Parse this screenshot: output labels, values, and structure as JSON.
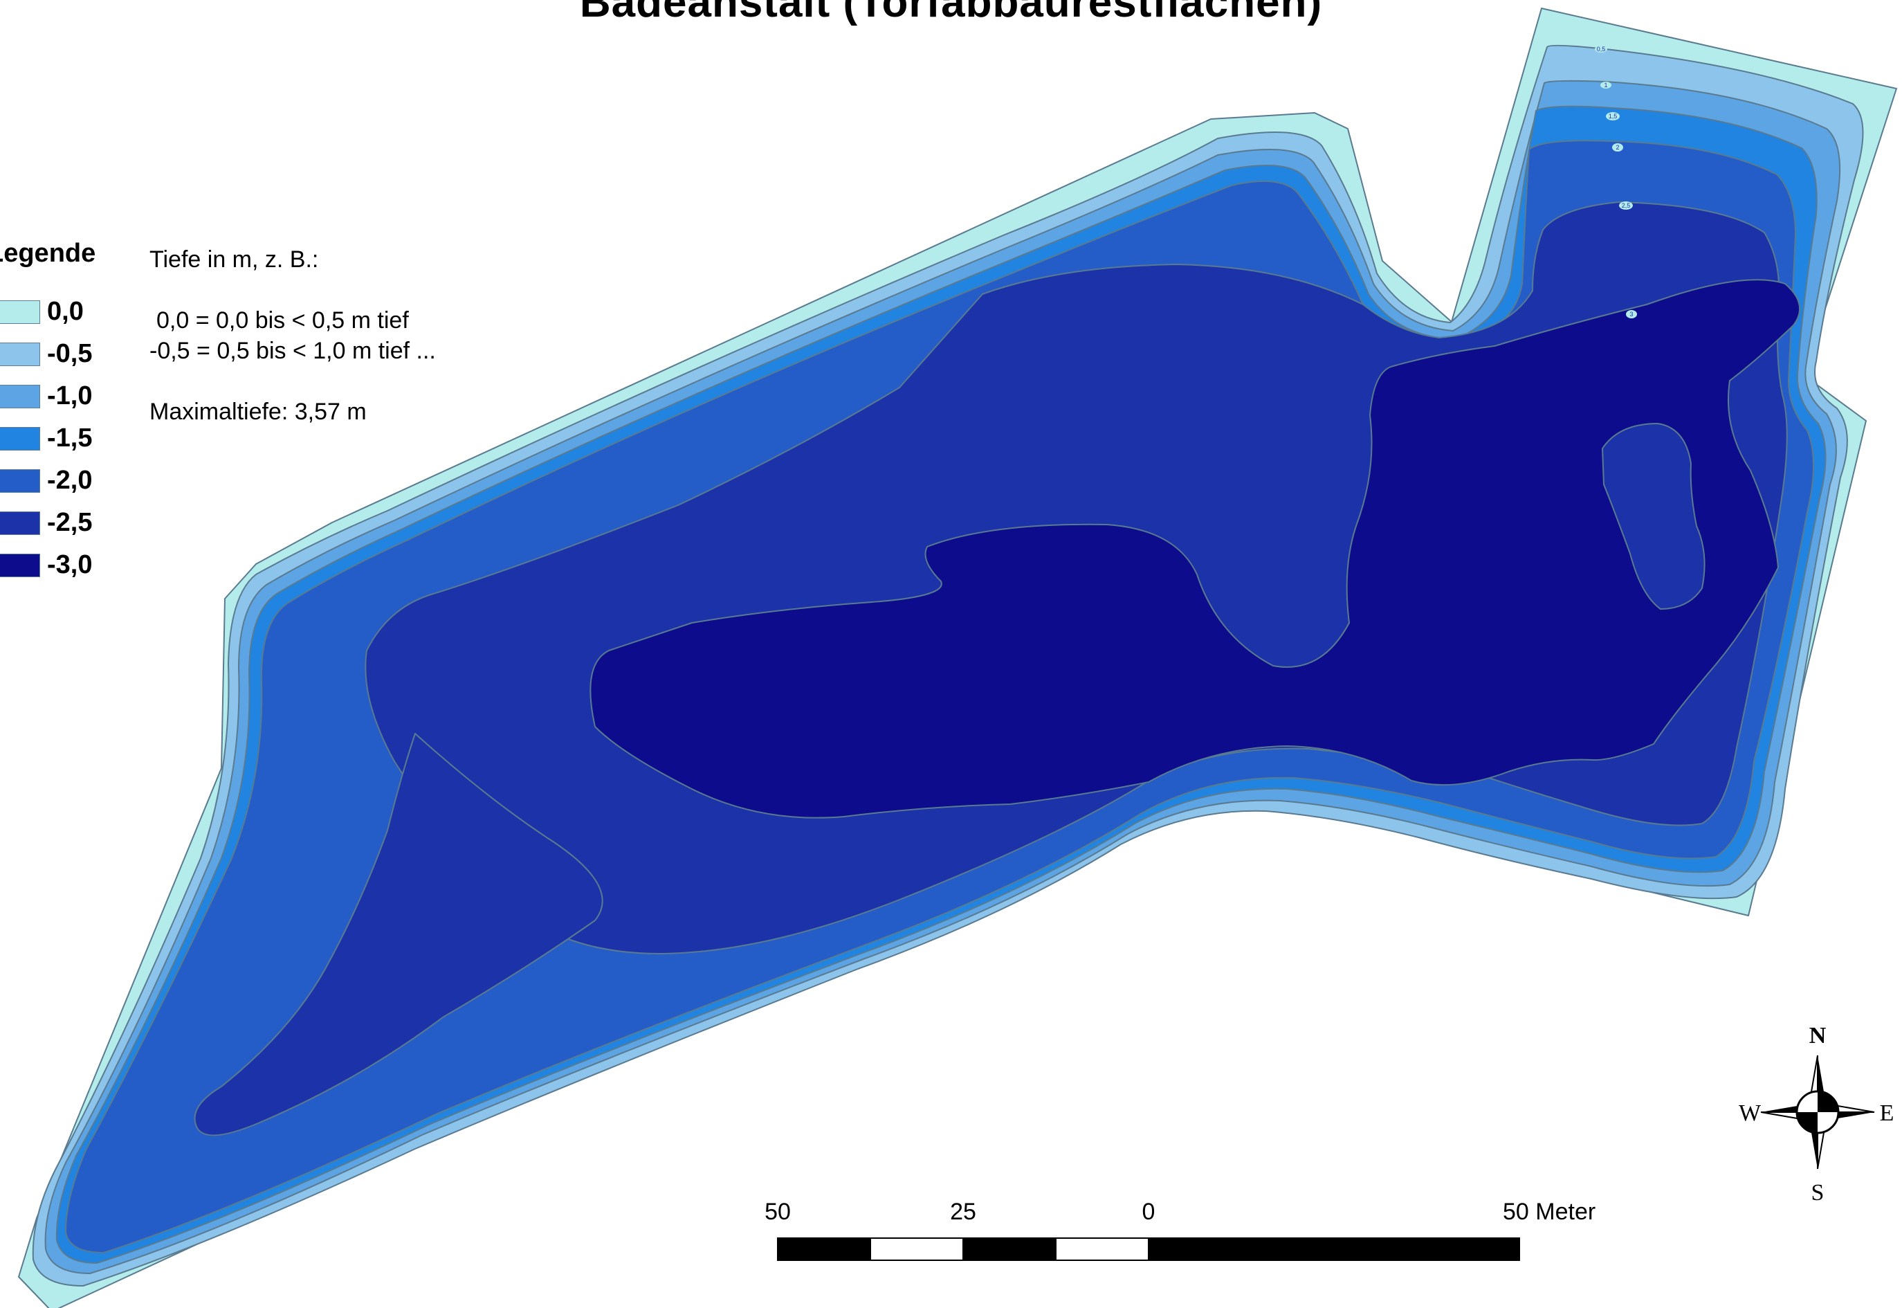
{
  "title": "Badeanstalt (Torfabbaurestflächen)",
  "legend": {
    "title": "Legende",
    "items": [
      {
        "label": "0,0",
        "color": "#b4ecec"
      },
      {
        "label": "-0,5",
        "color": "#8cc4ec"
      },
      {
        "label": "-1,0",
        "color": "#5ca4e4"
      },
      {
        "label": "-1,5",
        "color": "#2084e0"
      },
      {
        "label": "-2,0",
        "color": "#245cc8"
      },
      {
        "label": "-2,5",
        "color": "#1c32a8"
      },
      {
        "label": "-3,0",
        "color": "#0c0c8c"
      }
    ]
  },
  "info": {
    "line1": "Tiefe in m, z. B.:",
    "line2": "0,0 = 0,0 bis < 0,5 m tief",
    "line3": "-0,5 = 0,5 bis < 1,0 m tief ...",
    "line4": "Maximaltiefe: 3,57 m"
  },
  "contour_labels": [
    "0,5",
    "1",
    "1,5",
    "2",
    "2,5",
    "3"
  ],
  "scale_bar": {
    "labels": [
      "50",
      "25",
      "0",
      "50 Meter"
    ]
  },
  "compass": {
    "n": "N",
    "e": "E",
    "s": "S",
    "w": "W"
  },
  "colors": {
    "outline": "#5a7a90",
    "background": "#ffffff"
  }
}
